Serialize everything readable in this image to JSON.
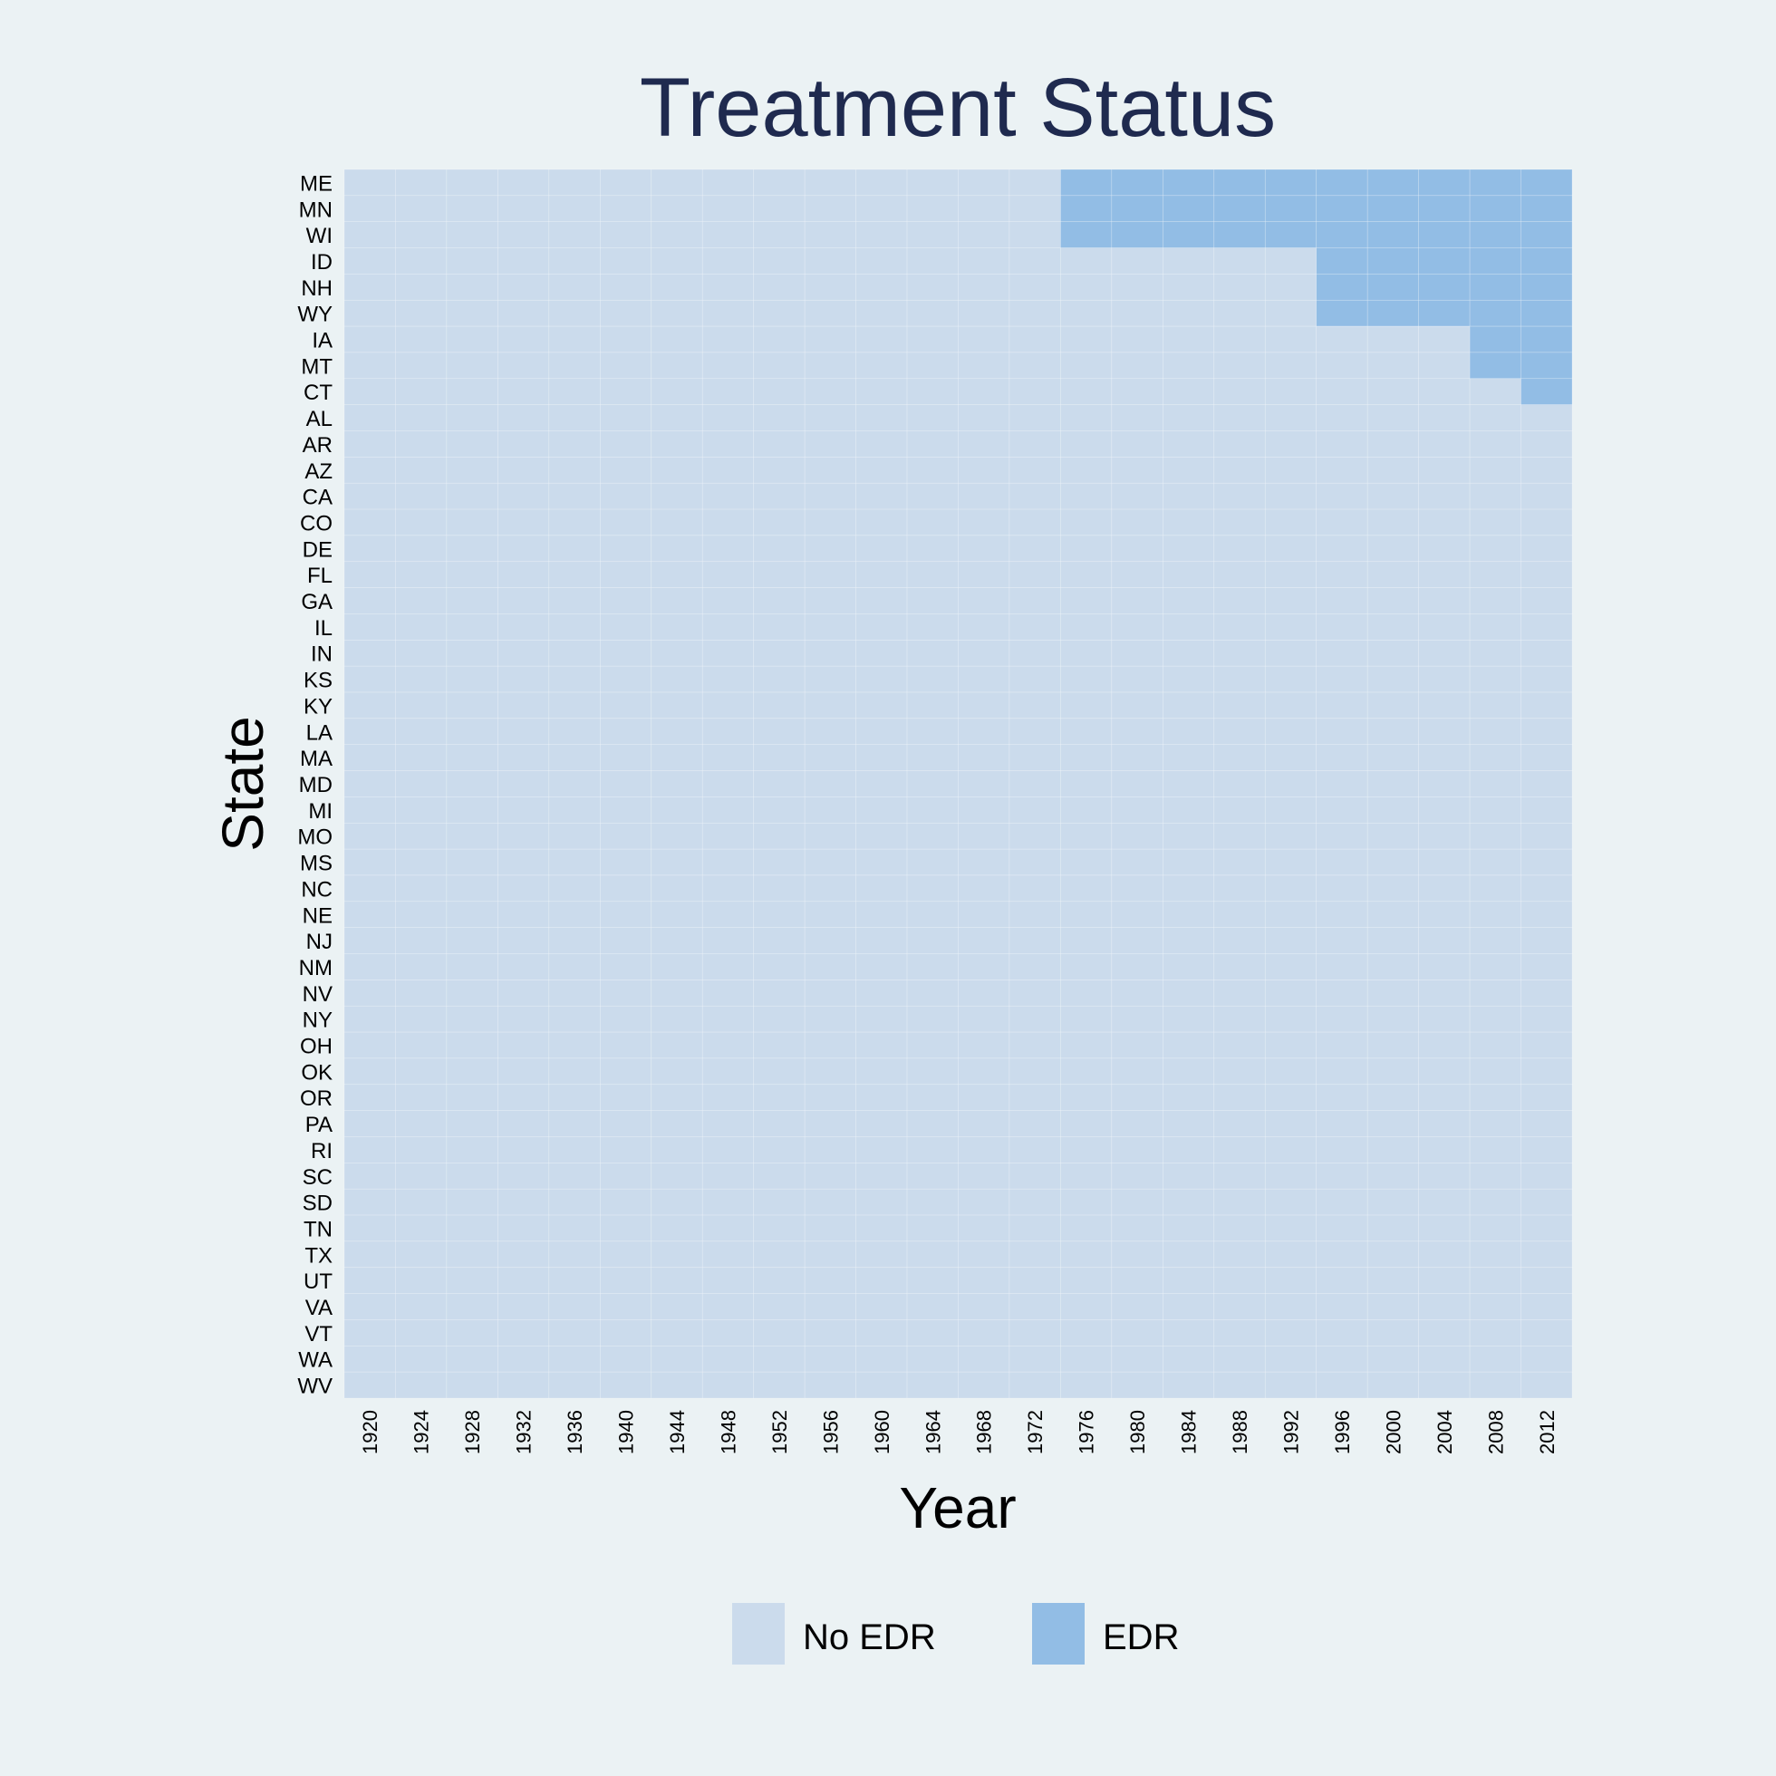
{
  "chart_data": {
    "type": "heatmap",
    "title": "Treatment Status",
    "xlabel": "Year",
    "ylabel": "State",
    "colors": {
      "background": "#ebf2f4",
      "no_edr": "#cbdbec",
      "edr": "#92bde5",
      "title": "#1f2a4f"
    },
    "x_categories": [
      "1920",
      "1924",
      "1928",
      "1932",
      "1936",
      "1940",
      "1944",
      "1948",
      "1952",
      "1956",
      "1960",
      "1964",
      "1968",
      "1972",
      "1976",
      "1980",
      "1984",
      "1988",
      "1992",
      "1996",
      "2000",
      "2004",
      "2008",
      "2012"
    ],
    "states": [
      "ME",
      "MN",
      "WI",
      "ID",
      "NH",
      "WY",
      "IA",
      "MT",
      "CT",
      "AL",
      "AR",
      "AZ",
      "CA",
      "CO",
      "DE",
      "FL",
      "GA",
      "IL",
      "IN",
      "KS",
      "KY",
      "LA",
      "MA",
      "MD",
      "MI",
      "MO",
      "MS",
      "NC",
      "NE",
      "NJ",
      "NM",
      "NV",
      "NY",
      "OH",
      "OK",
      "OR",
      "PA",
      "RI",
      "SC",
      "SD",
      "TN",
      "TX",
      "UT",
      "VA",
      "VT",
      "WA",
      "WV"
    ],
    "treatment_start": [
      {
        "state": "ME",
        "year": 1976
      },
      {
        "state": "MN",
        "year": 1976
      },
      {
        "state": "WI",
        "year": 1976
      },
      {
        "state": "ID",
        "year": 1996
      },
      {
        "state": "NH",
        "year": 1996
      },
      {
        "state": "WY",
        "year": 1996
      },
      {
        "state": "IA",
        "year": 2008
      },
      {
        "state": "MT",
        "year": 2008
      },
      {
        "state": "CT",
        "year": 2012
      }
    ],
    "legend": {
      "position": "bottom",
      "items": [
        {
          "label": "No EDR",
          "color": "#cbdbec"
        },
        {
          "label": "EDR",
          "color": "#92bde5"
        }
      ]
    }
  }
}
